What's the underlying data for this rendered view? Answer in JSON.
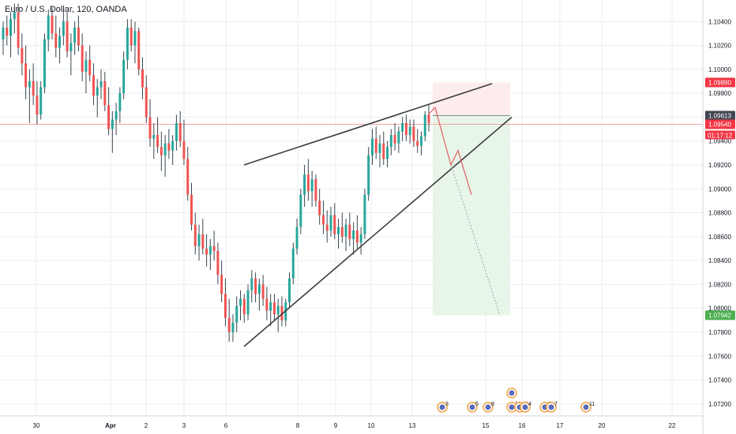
{
  "header": {
    "title": "Euro / U.S. Dollar, 120, OANDA"
  },
  "colors": {
    "up": "#26a69a",
    "down": "#ef5350",
    "wick": "#37474f",
    "grid": "#e9edf2",
    "axis_text": "#131722",
    "trendline": "#3c3c3c",
    "path": "#e06060",
    "target_badge": "#4caf50",
    "stop_badge": "#f23645",
    "last_badge": "#434651",
    "current_badge": "#f23645",
    "profit_zone": "#e8f5e9",
    "loss_zone": "#fdecec",
    "hline": "#f4a3a3"
  },
  "price_axis": {
    "ticks": [
      "1.10400",
      "1.10200",
      "1.10000",
      "1.09800",
      "1.09600",
      "1.09400",
      "1.09200",
      "1.09000",
      "1.08800",
      "1.08600",
      "1.08400",
      "1.08200",
      "1.08000",
      "1.07800",
      "1.07600",
      "1.07400",
      "1.07200"
    ],
    "badges": {
      "stop": "1.09890",
      "last": "1.09613",
      "current": "1.09540",
      "countdown": "01:17:12",
      "target": "1.07942"
    }
  },
  "time_axis": {
    "labels": [
      "30",
      "Apr",
      "2",
      "3",
      "6",
      "8",
      "9",
      "10",
      "13",
      "15",
      "16",
      "17",
      "20",
      "22"
    ]
  },
  "events": [
    {
      "icon": "flag-icon",
      "label": "3"
    },
    {
      "icon": "flag-icon",
      "label": "5"
    },
    {
      "icon": "flag-icon",
      "label": "8"
    },
    {
      "icon": "flag-icon",
      "label": "11"
    },
    {
      "icon": "flag-icon",
      "label": "11"
    },
    {
      "icon": "flag-icon",
      "label": "4"
    },
    {
      "icon": "flag-icon",
      "label": "2"
    },
    {
      "icon": "flag-icon",
      "label": "7"
    },
    {
      "icon": "flag-icon",
      "label": "11"
    }
  ],
  "chart_data": {
    "type": "candlestick",
    "title": "Euro / U.S. Dollar, 120, OANDA",
    "symbol": "EURUSD",
    "interval": "120",
    "ylim": [
      1.071,
      1.1058
    ],
    "candles": [
      [
        1.1025,
        1.104,
        1.1012,
        1.1035
      ],
      [
        1.1035,
        1.1045,
        1.102,
        1.1028
      ],
      [
        1.1028,
        1.1048,
        1.101,
        1.1042
      ],
      [
        1.1042,
        1.1055,
        1.103,
        1.1048
      ],
      [
        1.1048,
        1.1055,
        1.1012,
        1.1018
      ],
      [
        1.1018,
        1.103,
        1.0995,
        1.1005
      ],
      [
        1.1005,
        1.102,
        1.0975,
        1.0985
      ],
      [
        1.0985,
        1.1,
        1.0955,
        1.099
      ],
      [
        1.099,
        1.1005,
        1.097,
        1.0978
      ],
      [
        1.0978,
        1.099,
        1.0954,
        1.0962
      ],
      [
        1.0962,
        1.099,
        1.0958,
        1.0985
      ],
      [
        1.0985,
        1.103,
        1.098,
        1.1025
      ],
      [
        1.1025,
        1.105,
        1.1015,
        1.1045
      ],
      [
        1.1045,
        1.1052,
        1.1025,
        1.103
      ],
      [
        1.103,
        1.1045,
        1.101,
        1.1018
      ],
      [
        1.1018,
        1.1035,
        1.1005,
        1.1028
      ],
      [
        1.1028,
        1.105,
        1.102,
        1.104
      ],
      [
        1.104,
        1.1048,
        1.101,
        1.1015
      ],
      [
        1.1015,
        1.103,
        1.0995,
        1.1022
      ],
      [
        1.1022,
        1.104,
        1.1012,
        1.1035
      ],
      [
        1.1035,
        1.1045,
        1.1015,
        1.102
      ],
      [
        1.102,
        1.103,
        1.099,
        1.0998
      ],
      [
        1.0998,
        1.1015,
        1.098,
        1.1008
      ],
      [
        1.1008,
        1.102,
        1.099,
        1.0995
      ],
      [
        1.0995,
        1.1005,
        1.097,
        1.0978
      ],
      [
        1.0978,
        1.0992,
        1.096,
        1.0985
      ],
      [
        1.0985,
        1.1,
        1.0975,
        1.099
      ],
      [
        1.099,
        1.0998,
        1.0965,
        1.097
      ],
      [
        1.097,
        1.0985,
        1.0945,
        1.095
      ],
      [
        1.095,
        1.0965,
        1.093,
        1.0958
      ],
      [
        1.0958,
        1.0972,
        1.0945,
        1.0965
      ],
      [
        1.0965,
        1.0985,
        1.0955,
        1.098
      ],
      [
        1.098,
        1.1015,
        1.0975,
        1.1008
      ],
      [
        1.1008,
        1.1042,
        1.1,
        1.1035
      ],
      [
        1.1035,
        1.1042,
        1.1015,
        1.102
      ],
      [
        1.102,
        1.104,
        1.1005,
        1.1032
      ],
      [
        1.1032,
        1.1035,
        1.0995,
        1.1
      ],
      [
        1.1,
        1.101,
        1.0975,
        1.0985
      ],
      [
        1.0985,
        1.0995,
        1.0955,
        1.096
      ],
      [
        1.096,
        1.0975,
        1.0935,
        1.0942
      ],
      [
        1.0942,
        1.0955,
        1.0925,
        1.0945
      ],
      [
        1.0945,
        1.096,
        1.093,
        1.0935
      ],
      [
        1.0935,
        1.0948,
        1.0915,
        1.0928
      ],
      [
        1.0928,
        1.0945,
        1.091,
        1.0938
      ],
      [
        1.0938,
        1.095,
        1.0925,
        1.0932
      ],
      [
        1.0932,
        1.0945,
        1.092,
        1.094
      ],
      [
        1.094,
        1.0962,
        1.0932,
        1.0955
      ],
      [
        1.0955,
        1.0965,
        1.0935,
        1.094
      ],
      [
        1.094,
        1.0958,
        1.092,
        1.0925
      ],
      [
        1.0925,
        1.0935,
        1.089,
        1.0895
      ],
      [
        1.0895,
        1.0905,
        1.0865,
        1.087
      ],
      [
        1.087,
        1.088,
        1.0845,
        1.0852
      ],
      [
        1.0852,
        1.087,
        1.084,
        1.0862
      ],
      [
        1.0862,
        1.0875,
        1.0845,
        1.085
      ],
      [
        1.085,
        1.0862,
        1.0835,
        1.0845
      ],
      [
        1.0845,
        1.0858,
        1.0832,
        1.0852
      ],
      [
        1.0852,
        1.0865,
        1.084,
        1.0848
      ],
      [
        1.0848,
        1.0855,
        1.082,
        1.0828
      ],
      [
        1.0828,
        1.084,
        1.0805,
        1.0812
      ],
      [
        1.0812,
        1.0825,
        1.0785,
        1.0792
      ],
      [
        1.0792,
        1.0808,
        1.0772,
        1.078
      ],
      [
        1.078,
        1.0795,
        1.0772,
        1.0788
      ],
      [
        1.0788,
        1.081,
        1.078,
        1.0802
      ],
      [
        1.0802,
        1.0815,
        1.079,
        1.0808
      ],
      [
        1.0808,
        1.0812,
        1.0788,
        1.0795
      ],
      [
        1.0795,
        1.082,
        1.079,
        1.0815
      ],
      [
        1.0815,
        1.0832,
        1.0805,
        1.0825
      ],
      [
        1.0825,
        1.083,
        1.0805,
        1.0812
      ],
      [
        1.0812,
        1.0825,
        1.0798,
        1.082
      ],
      [
        1.082,
        1.0828,
        1.0802,
        1.0808
      ],
      [
        1.0808,
        1.0818,
        1.079,
        1.0798
      ],
      [
        1.0798,
        1.0812,
        1.0785,
        1.0805
      ],
      [
        1.0805,
        1.0812,
        1.079,
        1.0795
      ],
      [
        1.0795,
        1.0808,
        1.078,
        1.0802
      ],
      [
        1.0802,
        1.081,
        1.0785,
        1.079
      ],
      [
        1.079,
        1.0808,
        1.0785,
        1.0805
      ],
      [
        1.0805,
        1.083,
        1.08,
        1.0825
      ],
      [
        1.0825,
        1.0855,
        1.082,
        1.085
      ],
      [
        1.085,
        1.0875,
        1.0845,
        1.0868
      ],
      [
        1.0868,
        1.09,
        1.0862,
        1.0895
      ],
      [
        1.0895,
        1.092,
        1.0885,
        1.0912
      ],
      [
        1.0912,
        1.0925,
        1.089,
        1.0898
      ],
      [
        1.0898,
        1.0915,
        1.0885,
        1.0908
      ],
      [
        1.0908,
        1.0912,
        1.0885,
        1.089
      ],
      [
        1.089,
        1.09,
        1.087,
        1.0878
      ],
      [
        1.0878,
        1.089,
        1.0862,
        1.087
      ],
      [
        1.087,
        1.0882,
        1.0855,
        1.0865
      ],
      [
        1.0865,
        1.0885,
        1.086,
        1.0878
      ],
      [
        1.0878,
        1.0888,
        1.0858,
        1.0862
      ],
      [
        1.0862,
        1.0875,
        1.085,
        1.0868
      ],
      [
        1.0868,
        1.088,
        1.0855,
        1.086
      ],
      [
        1.086,
        1.0875,
        1.0848,
        1.087
      ],
      [
        1.087,
        1.088,
        1.0852,
        1.0858
      ],
      [
        1.0858,
        1.0872,
        1.0845,
        1.0865
      ],
      [
        1.0865,
        1.0878,
        1.085,
        1.0855
      ],
      [
        1.0855,
        1.0868,
        1.0845,
        1.0862
      ],
      [
        1.0862,
        1.09,
        1.0858,
        1.0895
      ],
      [
        1.0895,
        1.0935,
        1.089,
        1.0928
      ],
      [
        1.0928,
        1.095,
        1.092,
        1.0942
      ],
      [
        1.0942,
        1.0952,
        1.0925,
        1.093
      ],
      [
        1.093,
        1.0945,
        1.0918,
        1.0938
      ],
      [
        1.0938,
        1.0948,
        1.092,
        1.0925
      ],
      [
        1.0925,
        1.094,
        1.0918,
        1.0935
      ],
      [
        1.0935,
        1.095,
        1.0928,
        1.0945
      ],
      [
        1.0945,
        1.0955,
        1.0932,
        1.0938
      ],
      [
        1.0938,
        1.0952,
        1.093,
        1.0948
      ],
      [
        1.0948,
        1.096,
        1.094,
        1.0955
      ],
      [
        1.0955,
        1.0962,
        1.094,
        1.0945
      ],
      [
        1.0945,
        1.0958,
        1.0938,
        1.0952
      ],
      [
        1.0952,
        1.0958,
        1.0935,
        1.094
      ],
      [
        1.094,
        1.095,
        1.093,
        1.0936
      ],
      [
        1.0936,
        1.0948,
        1.0928,
        1.0944
      ],
      [
        1.0944,
        1.0965,
        1.094,
        1.0962
      ],
      [
        1.0962,
        1.097,
        1.0948,
        1.0955
      ]
    ],
    "overlays": {
      "trendline_upper": {
        "from": [
          7,
          1.092
        ],
        "to": [
          15.5,
          1.0988
        ]
      },
      "trendline_lower": {
        "from": [
          7,
          1.0768
        ],
        "to": [
          15.5,
          1.096
        ]
      },
      "short_position": {
        "entry": 1.09613,
        "stop": 1.0989,
        "target": 1.07942
      }
    }
  }
}
